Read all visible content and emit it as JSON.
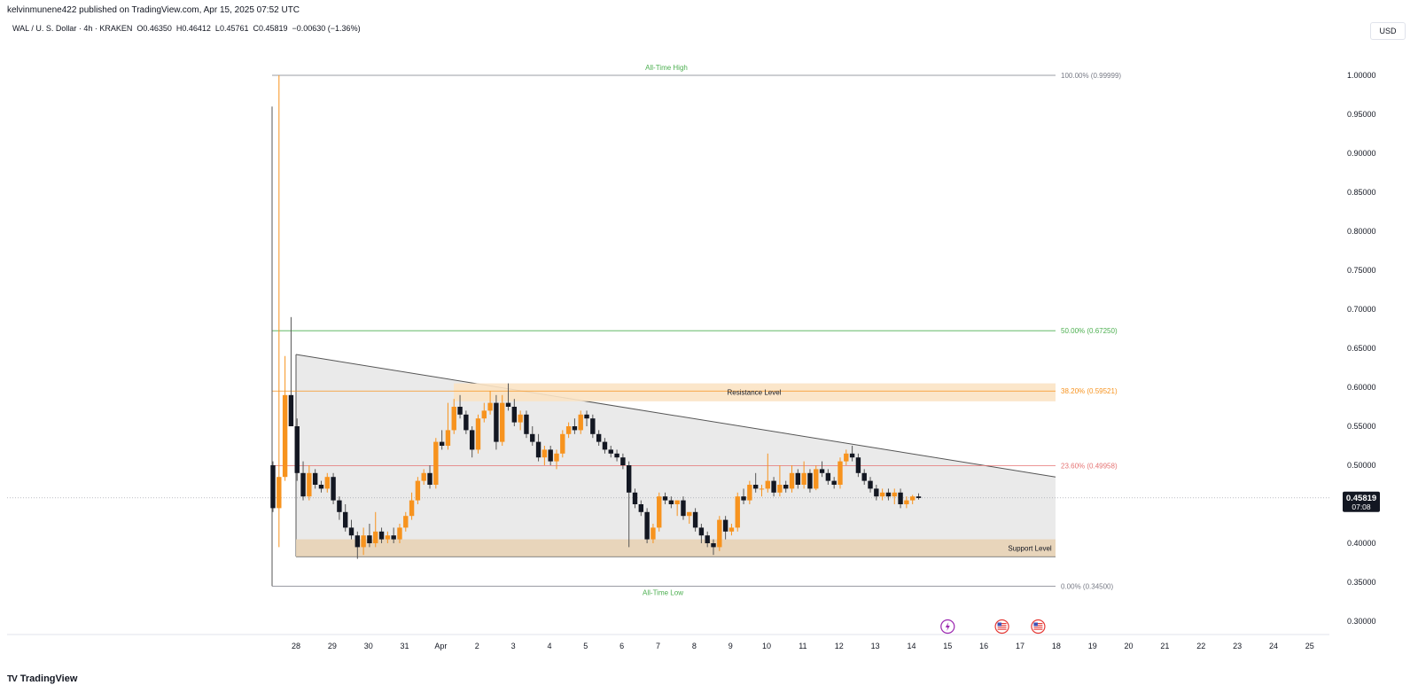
{
  "header": {
    "published": "kelvinmunene422 published on TradingView.com, Apr 15, 2025 07:52 UTC",
    "symbol_line": "WAL / U. S. Dollar · 4h · KRAKEN  O0.46350  H0.46412  L0.45761  C0.45819  −0.00630 (−1.36%)"
  },
  "currency": "USD",
  "brand": {
    "logo_text": "TradingView",
    "logo_mark": "TV"
  },
  "last_price": {
    "value": "0.45819",
    "countdown": "07:08",
    "value_num": 0.45819
  },
  "colors": {
    "up": "#f7931e",
    "down": "#131722",
    "support": "#e8d3b6",
    "resistance": "#fbe3c4",
    "triangle": "#e6e6e6",
    "green": "#4caf50",
    "orange": "#f7931e",
    "red": "#e57373",
    "grey": "#787b86"
  },
  "events": [
    {
      "icon": "lightning-icon",
      "x_day": 15
    },
    {
      "icon": "us-flag-icon",
      "x_day": 16.5
    },
    {
      "icon": "us-flag-icon",
      "x_day": 17.5
    }
  ],
  "chart_data": {
    "type": "candlestick",
    "timeframe": "4h",
    "x_ticks": [
      {
        "label": "28",
        "day": 28
      },
      {
        "label": "29",
        "day": 29
      },
      {
        "label": "30",
        "day": 30
      },
      {
        "label": "31",
        "day": 31
      },
      {
        "label": "Apr",
        "day": 32
      },
      {
        "label": "2",
        "day": 33
      },
      {
        "label": "3",
        "day": 34
      },
      {
        "label": "4",
        "day": 35
      },
      {
        "label": "5",
        "day": 36
      },
      {
        "label": "6",
        "day": 37
      },
      {
        "label": "7",
        "day": 38
      },
      {
        "label": "8",
        "day": 39
      },
      {
        "label": "9",
        "day": 40
      },
      {
        "label": "10",
        "day": 41
      },
      {
        "label": "11",
        "day": 42
      },
      {
        "label": "12",
        "day": 43
      },
      {
        "label": "13",
        "day": 44
      },
      {
        "label": "14",
        "day": 45
      },
      {
        "label": "15",
        "day": 46
      },
      {
        "label": "16",
        "day": 47
      },
      {
        "label": "17",
        "day": 48
      },
      {
        "label": "18",
        "day": 49
      },
      {
        "label": "19",
        "day": 50
      },
      {
        "label": "20",
        "day": 51
      },
      {
        "label": "21",
        "day": 52
      },
      {
        "label": "22",
        "day": 53
      },
      {
        "label": "23",
        "day": 54
      },
      {
        "label": "24",
        "day": 55
      },
      {
        "label": "25",
        "day": 56
      }
    ],
    "y_ticks": [
      "1.00000",
      "0.95000",
      "0.90000",
      "0.85000",
      "0.80000",
      "0.75000",
      "0.70000",
      "0.65000",
      "0.60000",
      "0.55000",
      "0.50000",
      "0.45000",
      "0.40000",
      "0.35000",
      "0.30000"
    ],
    "y_range": [
      0.3,
      1.0
    ],
    "candles": [
      {
        "o": 0.5,
        "h": 0.505,
        "l": 0.44,
        "c": 0.445
      },
      {
        "o": 0.445,
        "h": 1.0,
        "l": 0.395,
        "c": 0.485
      },
      {
        "o": 0.485,
        "h": 0.64,
        "l": 0.48,
        "c": 0.59
      },
      {
        "o": 0.59,
        "h": 0.69,
        "l": 0.55,
        "c": 0.55
      },
      {
        "o": 0.55,
        "h": 0.56,
        "l": 0.48,
        "c": 0.49
      },
      {
        "o": 0.49,
        "h": 0.505,
        "l": 0.455,
        "c": 0.46
      },
      {
        "o": 0.46,
        "h": 0.5,
        "l": 0.455,
        "c": 0.49
      },
      {
        "o": 0.49,
        "h": 0.495,
        "l": 0.47,
        "c": 0.475
      },
      {
        "o": 0.475,
        "h": 0.48,
        "l": 0.465,
        "c": 0.47
      },
      {
        "o": 0.47,
        "h": 0.49,
        "l": 0.465,
        "c": 0.485
      },
      {
        "o": 0.485,
        "h": 0.49,
        "l": 0.45,
        "c": 0.455
      },
      {
        "o": 0.455,
        "h": 0.46,
        "l": 0.43,
        "c": 0.44
      },
      {
        "o": 0.44,
        "h": 0.45,
        "l": 0.415,
        "c": 0.42
      },
      {
        "o": 0.42,
        "h": 0.43,
        "l": 0.405,
        "c": 0.41
      },
      {
        "o": 0.41,
        "h": 0.415,
        "l": 0.38,
        "c": 0.395
      },
      {
        "o": 0.395,
        "h": 0.42,
        "l": 0.385,
        "c": 0.41
      },
      {
        "o": 0.41,
        "h": 0.425,
        "l": 0.395,
        "c": 0.4
      },
      {
        "o": 0.4,
        "h": 0.44,
        "l": 0.395,
        "c": 0.415
      },
      {
        "o": 0.415,
        "h": 0.42,
        "l": 0.4,
        "c": 0.405
      },
      {
        "o": 0.405,
        "h": 0.415,
        "l": 0.4,
        "c": 0.41
      },
      {
        "o": 0.41,
        "h": 0.42,
        "l": 0.4,
        "c": 0.405
      },
      {
        "o": 0.405,
        "h": 0.425,
        "l": 0.4,
        "c": 0.42
      },
      {
        "o": 0.42,
        "h": 0.44,
        "l": 0.415,
        "c": 0.435
      },
      {
        "o": 0.435,
        "h": 0.465,
        "l": 0.43,
        "c": 0.455
      },
      {
        "o": 0.455,
        "h": 0.485,
        "l": 0.45,
        "c": 0.48
      },
      {
        "o": 0.48,
        "h": 0.495,
        "l": 0.475,
        "c": 0.49
      },
      {
        "o": 0.49,
        "h": 0.5,
        "l": 0.47,
        "c": 0.475
      },
      {
        "o": 0.475,
        "h": 0.535,
        "l": 0.47,
        "c": 0.53
      },
      {
        "o": 0.53,
        "h": 0.545,
        "l": 0.52,
        "c": 0.525
      },
      {
        "o": 0.525,
        "h": 0.58,
        "l": 0.52,
        "c": 0.545
      },
      {
        "o": 0.545,
        "h": 0.585,
        "l": 0.54,
        "c": 0.575
      },
      {
        "o": 0.575,
        "h": 0.59,
        "l": 0.56,
        "c": 0.565
      },
      {
        "o": 0.565,
        "h": 0.57,
        "l": 0.54,
        "c": 0.545
      },
      {
        "o": 0.545,
        "h": 0.55,
        "l": 0.51,
        "c": 0.52
      },
      {
        "o": 0.52,
        "h": 0.565,
        "l": 0.515,
        "c": 0.56
      },
      {
        "o": 0.56,
        "h": 0.58,
        "l": 0.555,
        "c": 0.57
      },
      {
        "o": 0.57,
        "h": 0.595,
        "l": 0.565,
        "c": 0.58
      },
      {
        "o": 0.58,
        "h": 0.59,
        "l": 0.52,
        "c": 0.53
      },
      {
        "o": 0.53,
        "h": 0.59,
        "l": 0.525,
        "c": 0.58
      },
      {
        "o": 0.58,
        "h": 0.605,
        "l": 0.57,
        "c": 0.575
      },
      {
        "o": 0.575,
        "h": 0.585,
        "l": 0.55,
        "c": 0.555
      },
      {
        "o": 0.555,
        "h": 0.57,
        "l": 0.545,
        "c": 0.565
      },
      {
        "o": 0.565,
        "h": 0.57,
        "l": 0.535,
        "c": 0.54
      },
      {
        "o": 0.54,
        "h": 0.55,
        "l": 0.525,
        "c": 0.53
      },
      {
        "o": 0.53,
        "h": 0.54,
        "l": 0.505,
        "c": 0.51
      },
      {
        "o": 0.51,
        "h": 0.525,
        "l": 0.5,
        "c": 0.52
      },
      {
        "o": 0.52,
        "h": 0.525,
        "l": 0.5,
        "c": 0.505
      },
      {
        "o": 0.505,
        "h": 0.52,
        "l": 0.495,
        "c": 0.515
      },
      {
        "o": 0.515,
        "h": 0.545,
        "l": 0.51,
        "c": 0.54
      },
      {
        "o": 0.54,
        "h": 0.555,
        "l": 0.535,
        "c": 0.55
      },
      {
        "o": 0.55,
        "h": 0.56,
        "l": 0.54,
        "c": 0.545
      },
      {
        "o": 0.545,
        "h": 0.57,
        "l": 0.54,
        "c": 0.565
      },
      {
        "o": 0.565,
        "h": 0.57,
        "l": 0.55,
        "c": 0.56
      },
      {
        "o": 0.56,
        "h": 0.565,
        "l": 0.535,
        "c": 0.54
      },
      {
        "o": 0.54,
        "h": 0.545,
        "l": 0.525,
        "c": 0.53
      },
      {
        "o": 0.53,
        "h": 0.535,
        "l": 0.515,
        "c": 0.52
      },
      {
        "o": 0.52,
        "h": 0.525,
        "l": 0.51,
        "c": 0.515
      },
      {
        "o": 0.515,
        "h": 0.52,
        "l": 0.505,
        "c": 0.51
      },
      {
        "o": 0.51,
        "h": 0.515,
        "l": 0.495,
        "c": 0.5
      },
      {
        "o": 0.5,
        "h": 0.505,
        "l": 0.395,
        "c": 0.465
      },
      {
        "o": 0.465,
        "h": 0.47,
        "l": 0.445,
        "c": 0.45
      },
      {
        "o": 0.45,
        "h": 0.455,
        "l": 0.435,
        "c": 0.44
      },
      {
        "o": 0.44,
        "h": 0.445,
        "l": 0.4,
        "c": 0.405
      },
      {
        "o": 0.405,
        "h": 0.425,
        "l": 0.4,
        "c": 0.42
      },
      {
        "o": 0.42,
        "h": 0.465,
        "l": 0.415,
        "c": 0.46
      },
      {
        "o": 0.46,
        "h": 0.465,
        "l": 0.45,
        "c": 0.455
      },
      {
        "o": 0.455,
        "h": 0.46,
        "l": 0.445,
        "c": 0.45
      },
      {
        "o": 0.45,
        "h": 0.455,
        "l": 0.435,
        "c": 0.455
      },
      {
        "o": 0.455,
        "h": 0.46,
        "l": 0.43,
        "c": 0.435
      },
      {
        "o": 0.435,
        "h": 0.44,
        "l": 0.425,
        "c": 0.44
      },
      {
        "o": 0.44,
        "h": 0.445,
        "l": 0.415,
        "c": 0.42
      },
      {
        "o": 0.42,
        "h": 0.425,
        "l": 0.4,
        "c": 0.41
      },
      {
        "o": 0.41,
        "h": 0.415,
        "l": 0.395,
        "c": 0.4
      },
      {
        "o": 0.4,
        "h": 0.405,
        "l": 0.385,
        "c": 0.395
      },
      {
        "o": 0.395,
        "h": 0.435,
        "l": 0.39,
        "c": 0.43
      },
      {
        "o": 0.43,
        "h": 0.435,
        "l": 0.405,
        "c": 0.415
      },
      {
        "o": 0.415,
        "h": 0.425,
        "l": 0.41,
        "c": 0.42
      },
      {
        "o": 0.42,
        "h": 0.465,
        "l": 0.415,
        "c": 0.46
      },
      {
        "o": 0.46,
        "h": 0.47,
        "l": 0.45,
        "c": 0.455
      },
      {
        "o": 0.455,
        "h": 0.48,
        "l": 0.45,
        "c": 0.475
      },
      {
        "o": 0.475,
        "h": 0.49,
        "l": 0.465,
        "c": 0.47
      },
      {
        "o": 0.47,
        "h": 0.475,
        "l": 0.46,
        "c": 0.47
      },
      {
        "o": 0.47,
        "h": 0.515,
        "l": 0.465,
        "c": 0.48
      },
      {
        "o": 0.48,
        "h": 0.485,
        "l": 0.46,
        "c": 0.465
      },
      {
        "o": 0.465,
        "h": 0.5,
        "l": 0.46,
        "c": 0.475
      },
      {
        "o": 0.475,
        "h": 0.48,
        "l": 0.465,
        "c": 0.47
      },
      {
        "o": 0.47,
        "h": 0.5,
        "l": 0.465,
        "c": 0.49
      },
      {
        "o": 0.49,
        "h": 0.495,
        "l": 0.47,
        "c": 0.475
      },
      {
        "o": 0.475,
        "h": 0.505,
        "l": 0.47,
        "c": 0.49
      },
      {
        "o": 0.49,
        "h": 0.495,
        "l": 0.465,
        "c": 0.47
      },
      {
        "o": 0.47,
        "h": 0.5,
        "l": 0.468,
        "c": 0.495
      },
      {
        "o": 0.495,
        "h": 0.505,
        "l": 0.485,
        "c": 0.49
      },
      {
        "o": 0.49,
        "h": 0.495,
        "l": 0.475,
        "c": 0.48
      },
      {
        "o": 0.48,
        "h": 0.485,
        "l": 0.47,
        "c": 0.475
      },
      {
        "o": 0.475,
        "h": 0.51,
        "l": 0.47,
        "c": 0.505
      },
      {
        "o": 0.505,
        "h": 0.52,
        "l": 0.5,
        "c": 0.515
      },
      {
        "o": 0.515,
        "h": 0.525,
        "l": 0.505,
        "c": 0.51
      },
      {
        "o": 0.51,
        "h": 0.515,
        "l": 0.485,
        "c": 0.49
      },
      {
        "o": 0.49,
        "h": 0.495,
        "l": 0.475,
        "c": 0.48
      },
      {
        "o": 0.48,
        "h": 0.485,
        "l": 0.465,
        "c": 0.47
      },
      {
        "o": 0.47,
        "h": 0.475,
        "l": 0.455,
        "c": 0.46
      },
      {
        "o": 0.46,
        "h": 0.47,
        "l": 0.455,
        "c": 0.465
      },
      {
        "o": 0.465,
        "h": 0.47,
        "l": 0.455,
        "c": 0.46
      },
      {
        "o": 0.46,
        "h": 0.47,
        "l": 0.45,
        "c": 0.465
      },
      {
        "o": 0.465,
        "h": 0.47,
        "l": 0.445,
        "c": 0.45
      },
      {
        "o": 0.45,
        "h": 0.46,
        "l": 0.445,
        "c": 0.455
      },
      {
        "o": 0.455,
        "h": 0.462,
        "l": 0.45,
        "c": 0.46
      },
      {
        "o": 0.46,
        "h": 0.464,
        "l": 0.456,
        "c": 0.458
      }
    ],
    "fib_levels": [
      {
        "ratio": "100.00%",
        "value": 0.99999,
        "label": "100.00% (0.99999)",
        "color": "#787b86"
      },
      {
        "ratio": "50.00%",
        "value": 0.6725,
        "label": "50.00% (0.67250)",
        "color": "#4caf50"
      },
      {
        "ratio": "38.20%",
        "value": 0.59521,
        "label": "38.20% (0.59521)",
        "color": "#f7931e"
      },
      {
        "ratio": "23.60%",
        "value": 0.49958,
        "label": "23.60% (0.49958)",
        "color": "#e57373"
      },
      {
        "ratio": "0.00%",
        "value": 0.345,
        "label": "0.00% (0.34500)",
        "color": "#787b86"
      }
    ],
    "annotations": {
      "all_time_high": "All-Time High",
      "all_time_low": "All-Time Low",
      "resistance": "Resistance Level",
      "support": "Support Level"
    },
    "zones": {
      "resistance": {
        "top": 0.605,
        "bottom": 0.582
      },
      "support": {
        "top": 0.405,
        "bottom": 0.383
      },
      "triangle": {
        "start_top": 0.642,
        "end_top": 0.485,
        "bottom": 0.383
      }
    }
  }
}
